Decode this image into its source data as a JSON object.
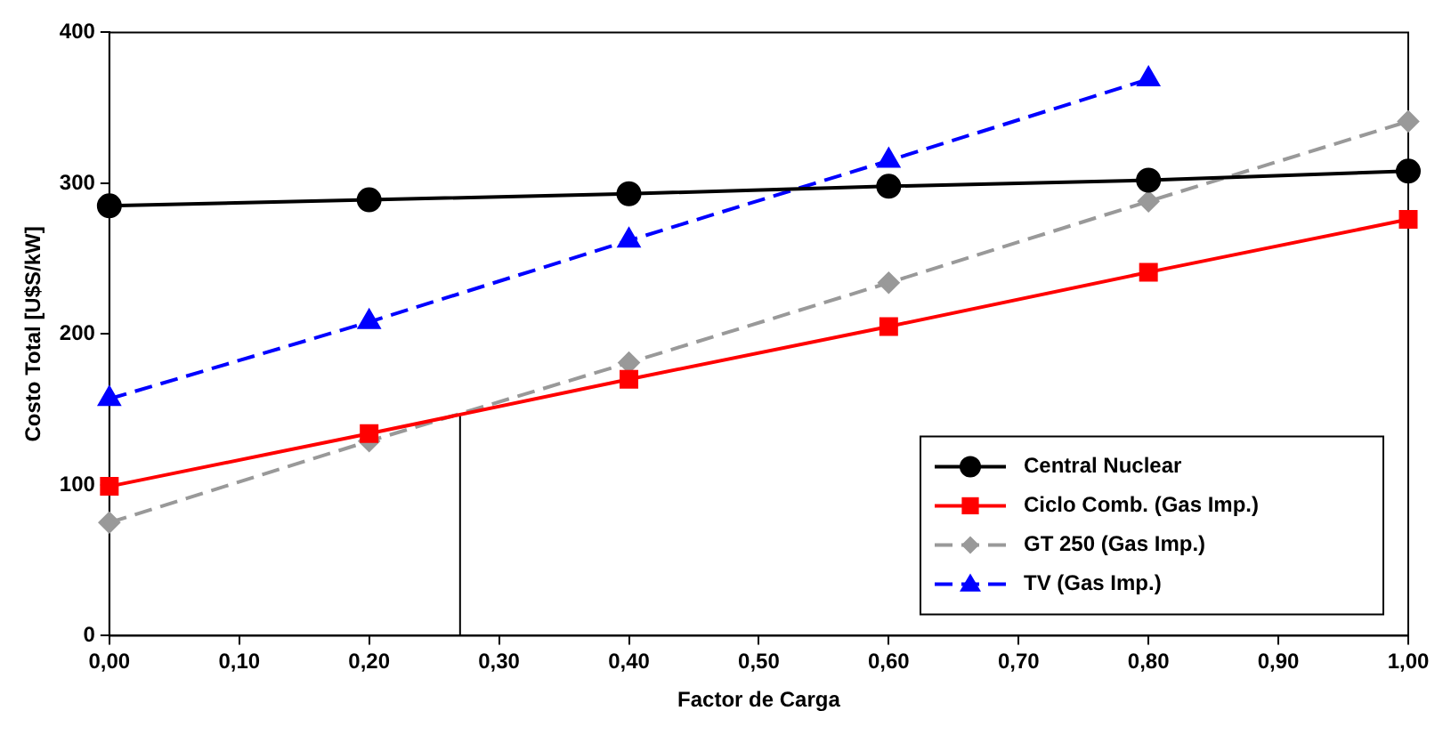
{
  "chart_data": {
    "type": "line",
    "xlabel": "Factor de Carga",
    "ylabel": "Costo Total [U$S/kW]",
    "x": [
      0,
      0.2,
      0.4,
      0.6,
      0.8,
      1.0
    ],
    "xlim": [
      0,
      1
    ],
    "xticks": [
      {
        "value": 0,
        "label": "0,00"
      },
      {
        "value": 0.1,
        "label": "0,10"
      },
      {
        "value": 0.2,
        "label": "0,20"
      },
      {
        "value": 0.3,
        "label": "0,30"
      },
      {
        "value": 0.4,
        "label": "0,40"
      },
      {
        "value": 0.5,
        "label": "0,50"
      },
      {
        "value": 0.6,
        "label": "0,60"
      },
      {
        "value": 0.7,
        "label": "0,70"
      },
      {
        "value": 0.8,
        "label": "0,80"
      },
      {
        "value": 0.9,
        "label": "0,90"
      },
      {
        "value": 1,
        "label": "1,00"
      }
    ],
    "ylim": [
      0,
      400
    ],
    "yticks": [
      0,
      100,
      200,
      300,
      400
    ],
    "grid": false,
    "legend": "bottom right",
    "series": [
      {
        "name": "Central Nuclear",
        "color": "#000000",
        "marker": "circle",
        "line_style": "solid",
        "values": [
          285,
          289,
          293,
          298,
          302,
          308
        ]
      },
      {
        "name": "Ciclo Comb. (Gas Imp.)",
        "color": "#ff0000",
        "marker": "square",
        "line_style": "solid",
        "values": [
          99,
          134,
          170,
          205,
          241,
          276
        ]
      },
      {
        "name": "GT 250 (Gas Imp.)",
        "color": "#999999",
        "marker": "diamond",
        "line_style": "dashed",
        "values": [
          75,
          129,
          181,
          234,
          288,
          341
        ]
      },
      {
        "name": "TV (Gas Imp.)",
        "color": "#0000ff",
        "marker": "triangle",
        "line_style": "dashed",
        "values": [
          157,
          208,
          262,
          315,
          369,
          null
        ]
      },
      {
        "color": "#000000",
        "marker": "none",
        "line_style": "solid",
        "x": [
          0.27,
          0.27
        ],
        "values": [
          0,
          147
        ]
      }
    ]
  }
}
